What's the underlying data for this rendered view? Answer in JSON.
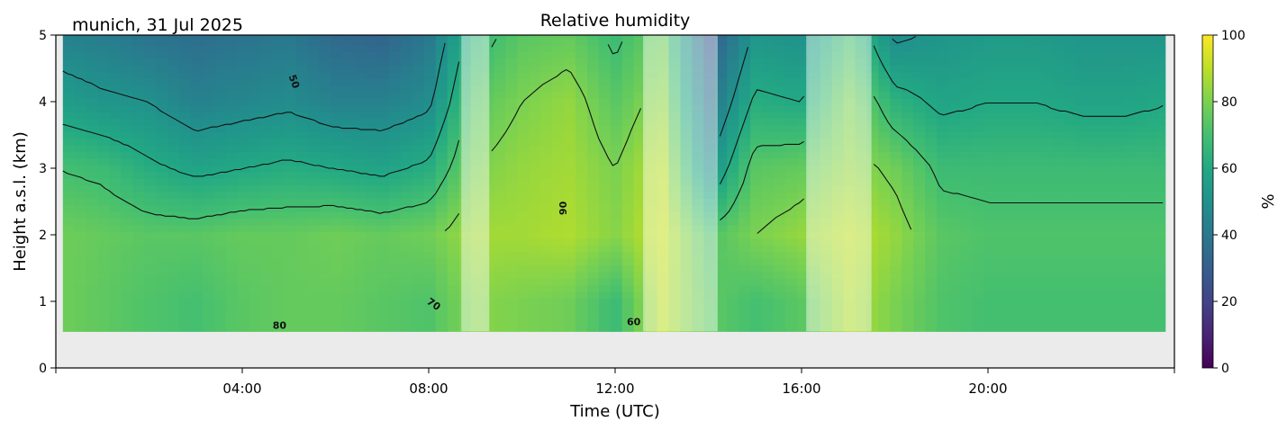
{
  "chart_data": {
    "type": "heatmap",
    "title": "Relative humidity",
    "subtitle": "munich, 31 Jul 2025",
    "xlabel": "Time (UTC)",
    "ylabel": "Height a.s.l. (km)",
    "xlim_hours": [
      0,
      24
    ],
    "ylim": [
      0,
      5
    ],
    "data_bottom_km": 0.55,
    "data_time_range_hours": [
      0.15,
      23.8
    ],
    "x_ticks": [
      {
        "hour": 4,
        "label": "04:00"
      },
      {
        "hour": 8,
        "label": "08:00"
      },
      {
        "hour": 12,
        "label": "12:00"
      },
      {
        "hour": 16,
        "label": "16:00"
      },
      {
        "hour": 20,
        "label": "20:00"
      }
    ],
    "y_ticks": [
      {
        "value": 0,
        "label": "0"
      },
      {
        "value": 1,
        "label": "1"
      },
      {
        "value": 2,
        "label": "2"
      },
      {
        "value": 3,
        "label": "3"
      },
      {
        "value": 4,
        "label": "4"
      },
      {
        "value": 5,
        "label": "5"
      }
    ],
    "colorbar": {
      "label": "%",
      "range": [
        0,
        100
      ],
      "colormap": "viridis",
      "ticks": [
        {
          "value": 0,
          "label": "0"
        },
        {
          "value": 20,
          "label": "20"
        },
        {
          "value": 40,
          "label": "40"
        },
        {
          "value": 60,
          "label": "60"
        },
        {
          "value": 80,
          "label": "80"
        },
        {
          "value": 100,
          "label": "100"
        }
      ]
    },
    "contour_labels": [
      {
        "label": "50",
        "hour": 5.1,
        "km": 4.3,
        "angle": 70
      },
      {
        "label": "70",
        "hour": 8.1,
        "km": 0.95,
        "angle": 35
      },
      {
        "label": "80",
        "hour": 4.8,
        "km": 0.63,
        "angle": 0
      },
      {
        "label": "60",
        "hour": 12.4,
        "km": 0.68,
        "angle": 0
      },
      {
        "label": "90",
        "hour": 10.9,
        "km": 2.4,
        "angle": -90
      }
    ],
    "masked_periods_hours": [
      [
        8.7,
        9.3
      ],
      [
        12.6,
        14.2
      ],
      [
        16.1,
        17.5
      ]
    ],
    "profile": {
      "hours": [
        0,
        1,
        2,
        3,
        4,
        5,
        6,
        7,
        8,
        9,
        10,
        11,
        12,
        13,
        14,
        15,
        16,
        17,
        18,
        19,
        20,
        21,
        22,
        23,
        24
      ],
      "rh_at_1km": [
        78,
        75,
        72,
        70,
        74,
        76,
        76,
        74,
        72,
        82,
        80,
        78,
        68,
        90,
        75,
        70,
        74,
        88,
        80,
        72,
        70,
        70,
        70,
        70,
        70
      ],
      "rh_at_2km": [
        78,
        76,
        74,
        74,
        76,
        76,
        78,
        76,
        78,
        86,
        86,
        88,
        82,
        92,
        72,
        80,
        84,
        90,
        84,
        74,
        72,
        72,
        72,
        72,
        72
      ],
      "rh_at_3km": [
        70,
        68,
        62,
        58,
        60,
        62,
        60,
        58,
        62,
        80,
        84,
        86,
        80,
        90,
        50,
        74,
        76,
        84,
        78,
        68,
        68,
        68,
        68,
        68,
        68
      ],
      "rh_at_4km": [
        56,
        52,
        50,
        44,
        46,
        48,
        44,
        44,
        48,
        74,
        80,
        84,
        74,
        84,
        38,
        62,
        60,
        80,
        64,
        58,
        60,
        60,
        58,
        58,
        60
      ],
      "rh_at_5km": [
        44,
        42,
        38,
        36,
        38,
        40,
        34,
        32,
        40,
        66,
        74,
        76,
        68,
        78,
        28,
        52,
        50,
        70,
        48,
        52,
        54,
        54,
        52,
        52,
        52
      ]
    }
  }
}
